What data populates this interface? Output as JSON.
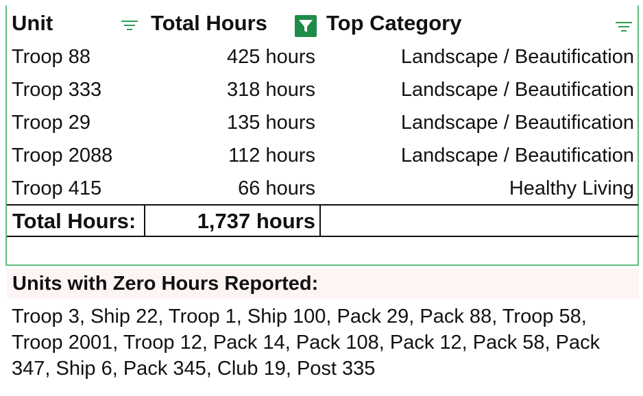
{
  "table": {
    "headers": {
      "unit": "Unit",
      "total_hours": "Total Hours",
      "top_category": "Top Category"
    },
    "rows": [
      {
        "unit": "Troop 88",
        "hours": "425 hours",
        "category": "Landscape / Beautification"
      },
      {
        "unit": "Troop 333",
        "hours": "318 hours",
        "category": "Landscape / Beautification"
      },
      {
        "unit": "Troop 29",
        "hours": "135 hours",
        "category": "Landscape / Beautification"
      },
      {
        "unit": "Troop 2088",
        "hours": "112 hours",
        "category": "Landscape / Beautification"
      },
      {
        "unit": "Troop 415",
        "hours": "66 hours",
        "category": "Healthy Living"
      }
    ],
    "total": {
      "label": "Total Hours:",
      "value": "1,737 hours"
    }
  },
  "zero_hours": {
    "title": "Units with Zero Hours Reported:",
    "units": "Troop 3, Ship 22, Troop 1, Ship 100, Pack 29, Pack 88, Troop 58, Troop 2001, Troop 12, Pack 14, Pack 108, Pack 12, Pack 58, Pack 347, Ship 6, Pack 345, Club 19, Post 335"
  },
  "icons": {
    "unit_filter": "filter-lines-icon",
    "hours_filter": "filter-active-icon",
    "category_filter": "filter-lines-icon"
  },
  "colors": {
    "accent_green": "#1e8c48",
    "border_green": "#5cbf7a",
    "title_background": "#fdf4f4"
  }
}
